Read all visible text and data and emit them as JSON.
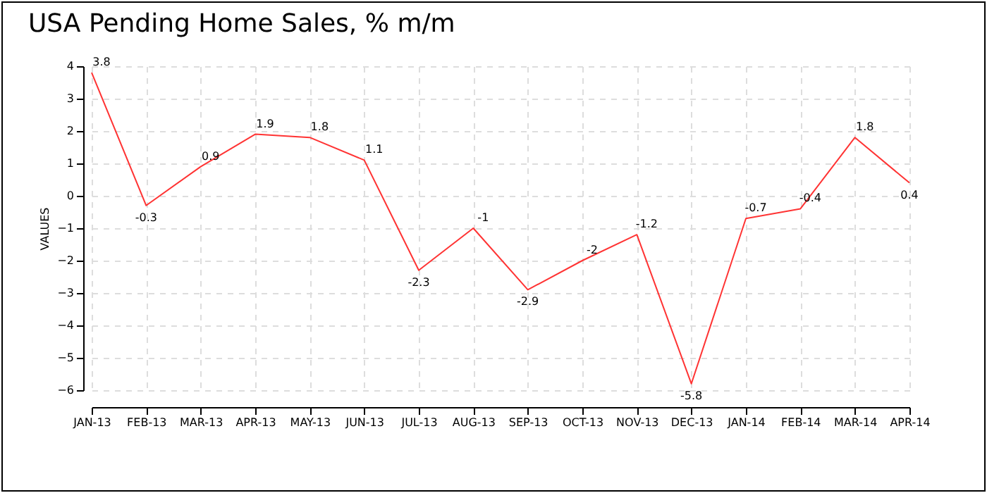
{
  "chart_data": {
    "type": "line",
    "title": "USA Pending Home Sales, % m/m",
    "ylabel": "VALUES",
    "categories": [
      "JAN-13",
      "FEB-13",
      "MAR-13",
      "APR-13",
      "MAY-13",
      "JUN-13",
      "JUL-13",
      "AUG-13",
      "SEP-13",
      "OCT-13",
      "NOV-13",
      "DEC-13",
      "JAN-14",
      "FEB-14",
      "MAR-14",
      "APR-14"
    ],
    "series": [
      {
        "color": "#ff3333",
        "values": [
          3.8,
          -0.3,
          0.9,
          1.9,
          1.8,
          1.1,
          -2.3,
          -1,
          -2.9,
          -2,
          -1.2,
          -5.8,
          -0.7,
          -0.4,
          1.8,
          0.4
        ]
      }
    ],
    "ylim": [
      -6,
      4
    ],
    "yticks": [
      -6,
      -5,
      -4,
      -3,
      -2,
      -1,
      0,
      1,
      2,
      3,
      4
    ],
    "grid": true,
    "data_labels": true,
    "marker": "none",
    "line_style": "solid"
  }
}
